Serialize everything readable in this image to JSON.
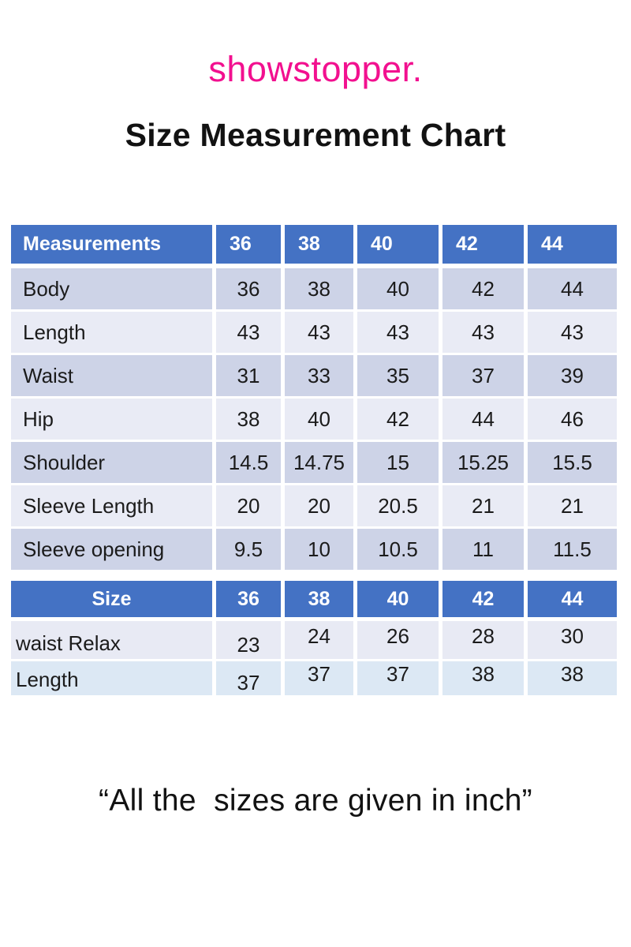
{
  "page": {
    "brand": "showstopper.",
    "title": "Size Measurement Chart",
    "footnote": "“All the  sizes are given in inch”"
  },
  "colors": {
    "brand_pink": "#F2108F",
    "header_blue": "#4472C4",
    "band_dark": "#CDD3E7",
    "band_light": "#E9EBF5",
    "size_table_row1_bg": "#E8EAF4",
    "size_table_row2_bg": "#DCE8F4",
    "text_dark": "#1b1b1b"
  },
  "measurement_table": {
    "header": [
      "Measurements",
      "36",
      "38",
      "40",
      "42",
      "44"
    ],
    "rows": [
      {
        "label": "Body",
        "values": [
          "36",
          "38",
          "40",
          "42",
          "44"
        ]
      },
      {
        "label": "Length",
        "values": [
          "43",
          "43",
          "43",
          "43",
          "43"
        ]
      },
      {
        "label": "Waist",
        "values": [
          "31",
          "33",
          "35",
          "37",
          "39"
        ]
      },
      {
        "label": "Hip",
        "values": [
          "38",
          "40",
          "42",
          "44",
          "46"
        ]
      },
      {
        "label": "Shoulder",
        "values": [
          "14.5",
          "14.75",
          "15",
          "15.25",
          "15.5"
        ]
      },
      {
        "label": "Sleeve Length",
        "values": [
          "20",
          "20",
          "20.5",
          "21",
          "21"
        ]
      },
      {
        "label": "Sleeve opening",
        "values": [
          "9.5",
          "10",
          "10.5",
          "11",
          "11.5"
        ]
      }
    ]
  },
  "size_table": {
    "header": [
      "Size",
      "36",
      "38",
      "40",
      "42",
      "44"
    ],
    "rows": [
      {
        "label": "waist Relax",
        "values": [
          "23",
          "24",
          "26",
          "28",
          "30"
        ]
      },
      {
        "label": "Length",
        "values": [
          "37",
          "37",
          "37",
          "38",
          "38"
        ]
      }
    ]
  }
}
